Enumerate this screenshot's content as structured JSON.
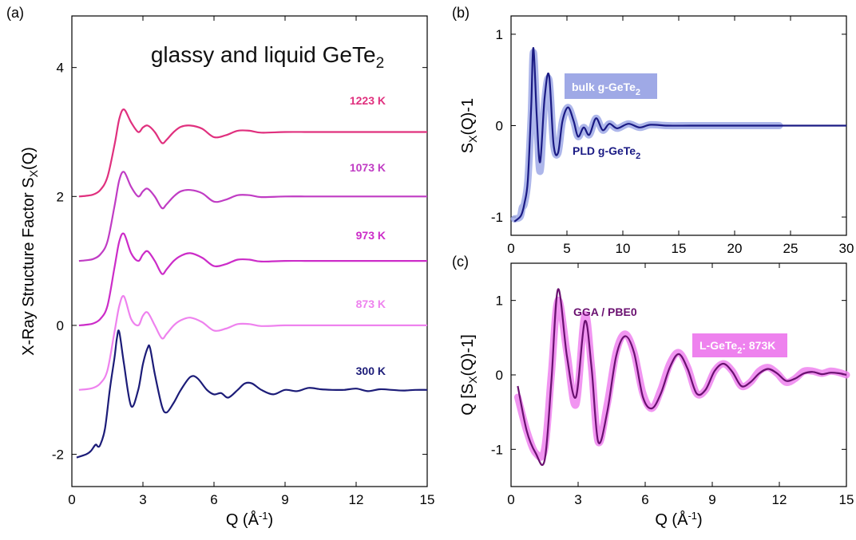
{
  "chart_data": [
    {
      "panel": "(a)",
      "type": "line",
      "title": "glassy and liquid GeTe",
      "title_sub": "2",
      "xlabel": "Q (Å",
      "xlabel_sup": "-1",
      "xlabel_end": ")",
      "ylabel": "X-Ray Structure Factor S",
      "ylabel_sub": "X",
      "ylabel_end": "(Q)",
      "xlim": [
        0,
        15
      ],
      "ylim": [
        -2.5,
        4.8
      ],
      "xticks": [
        "0",
        "3",
        "6",
        "9",
        "12",
        "15"
      ],
      "yticks": [
        "-2",
        "0",
        "2",
        "4"
      ],
      "series": [
        {
          "name": "1223 K",
          "color": "#e0307e",
          "offset": 3,
          "x": [
            0.3,
            0.6,
            0.9,
            1.2,
            1.5,
            1.8,
            2.0,
            2.2,
            2.5,
            2.8,
            3.0,
            3.2,
            3.5,
            3.8,
            4.0,
            4.3,
            4.6,
            5.0,
            5.5,
            6.0,
            6.5,
            7.0,
            7.5,
            8.0,
            9.0,
            10.0,
            11.0,
            12.0,
            13.0,
            14.0,
            15.0
          ],
          "y": [
            -1.0,
            -0.99,
            -0.97,
            -0.9,
            -0.7,
            -0.2,
            0.2,
            0.35,
            0.15,
            0.0,
            0.07,
            0.1,
            0.0,
            -0.17,
            -0.12,
            0.0,
            0.08,
            0.1,
            0.05,
            -0.08,
            -0.05,
            0.02,
            0.02,
            -0.01,
            0.0,
            0.0,
            0.0,
            0.0,
            0.0,
            0.0,
            0.0
          ]
        },
        {
          "name": "1073 K",
          "color": "#c03cc4",
          "offset": 2,
          "x": [
            0.3,
            0.6,
            0.9,
            1.2,
            1.5,
            1.8,
            2.0,
            2.2,
            2.5,
            2.8,
            3.0,
            3.2,
            3.5,
            3.8,
            4.0,
            4.3,
            4.6,
            5.0,
            5.5,
            6.0,
            6.5,
            7.0,
            7.5,
            8.0,
            9.0,
            10.0,
            11.0,
            12.0,
            13.0,
            14.0,
            15.0
          ],
          "y": [
            -1.0,
            -0.99,
            -0.97,
            -0.9,
            -0.7,
            -0.15,
            0.25,
            0.38,
            0.15,
            0.0,
            0.08,
            0.12,
            0.0,
            -0.18,
            -0.12,
            0.0,
            0.08,
            0.1,
            0.05,
            -0.08,
            -0.05,
            0.02,
            0.02,
            -0.01,
            0.0,
            0.0,
            0.0,
            0.0,
            0.0,
            0.0,
            0.0
          ]
        },
        {
          "name": "973 K",
          "color": "#cc2cc8",
          "offset": 1,
          "x": [
            0.3,
            0.6,
            0.9,
            1.2,
            1.5,
            1.8,
            2.0,
            2.2,
            2.5,
            2.8,
            3.0,
            3.2,
            3.5,
            3.8,
            4.0,
            4.3,
            4.6,
            5.0,
            5.5,
            6.0,
            6.5,
            7.0,
            7.5,
            8.0,
            9.0,
            10.0,
            11.0,
            12.0,
            13.0,
            14.0,
            15.0
          ],
          "y": [
            -1.0,
            -0.99,
            -0.97,
            -0.9,
            -0.7,
            -0.1,
            0.3,
            0.42,
            0.12,
            0.0,
            0.1,
            0.15,
            0.0,
            -0.2,
            -0.13,
            0.0,
            0.08,
            0.12,
            0.05,
            -0.08,
            -0.05,
            0.02,
            0.02,
            -0.01,
            0.0,
            0.0,
            0.0,
            0.0,
            0.0,
            0.0,
            0.0
          ]
        },
        {
          "name": "873 K",
          "color": "#ee82ee",
          "offset": 0,
          "x": [
            0.3,
            0.6,
            0.9,
            1.2,
            1.5,
            1.8,
            2.0,
            2.2,
            2.5,
            2.8,
            3.0,
            3.2,
            3.5,
            3.8,
            4.0,
            4.3,
            4.6,
            5.0,
            5.5,
            6.0,
            6.5,
            7.0,
            7.5,
            8.0,
            9.0,
            10.0,
            11.0,
            12.0,
            13.0,
            14.0,
            15.0
          ],
          "y": [
            -1.0,
            -0.99,
            -0.97,
            -0.9,
            -0.7,
            -0.1,
            0.3,
            0.45,
            0.1,
            0.0,
            0.15,
            0.2,
            0.0,
            -0.2,
            -0.13,
            0.0,
            0.08,
            0.12,
            0.05,
            -0.08,
            -0.05,
            0.02,
            0.02,
            -0.01,
            0.0,
            0.0,
            0.0,
            0.0,
            0.0,
            0.0,
            0.0
          ]
        },
        {
          "name": "300 K",
          "color": "#1c1c78",
          "offset": 0,
          "x": [
            0.2,
            0.6,
            0.8,
            1.0,
            1.1,
            1.2,
            1.4,
            1.6,
            1.8,
            1.9,
            2.0,
            2.2,
            2.5,
            2.8,
            3.0,
            3.2,
            3.3,
            3.5,
            3.8,
            4.0,
            4.3,
            4.6,
            5.0,
            5.3,
            5.7,
            6.0,
            6.3,
            6.6,
            7.0,
            7.3,
            7.6,
            8.0,
            8.5,
            9.0,
            9.5,
            10.0,
            10.5,
            11.0,
            11.5,
            12.0,
            12.5,
            13.0,
            13.5,
            14.0,
            14.5,
            15.0
          ],
          "y": [
            -2.05,
            -2.0,
            -1.95,
            -1.85,
            -1.88,
            -1.85,
            -1.6,
            -1.0,
            -0.5,
            -0.2,
            -0.1,
            -0.6,
            -1.25,
            -1.0,
            -0.6,
            -0.35,
            -0.35,
            -0.75,
            -1.25,
            -1.35,
            -1.2,
            -1.0,
            -0.8,
            -0.82,
            -1.0,
            -1.07,
            -1.05,
            -1.12,
            -1.0,
            -0.9,
            -0.9,
            -1.0,
            -1.07,
            -1.0,
            -1.02,
            -0.97,
            -0.99,
            -1.0,
            -1.0,
            -0.98,
            -1.02,
            -0.99,
            -1.0,
            -1.01,
            -1.0,
            -1.0
          ]
        }
      ]
    },
    {
      "panel": "(b)",
      "type": "line",
      "xlabel": "",
      "ylabel": "S",
      "ylabel_sub": "X",
      "ylabel_end": "(Q)-1",
      "xlim": [
        0,
        30
      ],
      "ylim": [
        -1.2,
        1.2
      ],
      "xticks": [
        "0",
        "5",
        "10",
        "15",
        "20",
        "25",
        "30"
      ],
      "yticks": [
        "-1",
        "0",
        "1"
      ],
      "series": [
        {
          "name": "bulk g-GeTe",
          "name_sub": "2",
          "color": "#9fa9e6",
          "style": "band",
          "x": [
            0.3,
            0.8,
            1.0,
            1.2,
            1.5,
            1.8,
            2.0,
            2.3,
            2.6,
            3.0,
            3.4,
            3.8,
            4.2,
            4.6,
            5.1,
            5.6,
            6.0,
            6.5,
            7.0,
            7.6,
            8.2,
            8.8,
            9.5,
            10.5,
            11.5,
            12.5,
            14.0,
            16.0,
            18.0,
            20.0,
            22.0,
            24.0
          ],
          "y": [
            -1.02,
            -1.0,
            -0.9,
            -0.85,
            -0.6,
            0.1,
            0.8,
            0.1,
            -0.5,
            0.25,
            0.5,
            -0.2,
            -0.3,
            0.05,
            0.2,
            0.05,
            -0.12,
            -0.02,
            -0.1,
            0.08,
            -0.05,
            0.02,
            -0.03,
            0.02,
            -0.02,
            0.01,
            0.0,
            0.0,
            0.0,
            0.0,
            0.0,
            0.0
          ]
        },
        {
          "name": "PLD g-GeTe",
          "name_sub": "2",
          "color": "#1a1a84",
          "style": "line",
          "x": [
            0.3,
            0.8,
            1.0,
            1.2,
            1.5,
            1.8,
            2.0,
            2.3,
            2.6,
            3.0,
            3.4,
            3.8,
            4.2,
            4.6,
            5.1,
            5.6,
            6.0,
            6.5,
            7.0,
            7.6,
            8.2,
            8.8,
            9.5,
            10.5,
            11.5,
            12.5,
            14.0,
            16.0,
            18.0,
            20.0,
            22.0,
            24.0,
            26.0,
            28.0,
            30.0
          ],
          "y": [
            -1.05,
            -1.0,
            -0.95,
            -0.85,
            -0.6,
            0.2,
            0.85,
            0.1,
            -0.4,
            0.3,
            0.55,
            -0.2,
            -0.3,
            0.05,
            0.2,
            0.05,
            -0.12,
            -0.02,
            -0.1,
            0.08,
            -0.05,
            0.02,
            -0.03,
            0.02,
            -0.02,
            0.01,
            0.0,
            0.0,
            0.0,
            0.0,
            0.0,
            0.0,
            0.0,
            0.0,
            0.0
          ]
        }
      ]
    },
    {
      "panel": "(c)",
      "type": "line",
      "xlabel": "Q (Å",
      "xlabel_sup": "-1",
      "xlabel_end": ")",
      "ylabel": "Q [S",
      "ylabel_sub": "X",
      "ylabel_end": "(Q)-1]",
      "xlim": [
        0,
        15
      ],
      "ylim": [
        -1.5,
        1.5
      ],
      "xticks": [
        "0",
        "3",
        "6",
        "9",
        "12",
        "15"
      ],
      "yticks": [
        "-1",
        "0",
        "1"
      ],
      "series": [
        {
          "name": "L-GeTe",
          "name_sub": "2",
          "name_end": ": 873K",
          "color": "#ee82ee",
          "style": "band",
          "x": [
            0.3,
            0.7,
            1.1,
            1.5,
            1.8,
            2.1,
            2.5,
            2.9,
            3.3,
            3.6,
            3.9,
            4.3,
            4.7,
            5.1,
            5.5,
            5.9,
            6.3,
            6.7,
            7.1,
            7.5,
            7.9,
            8.3,
            8.7,
            9.1,
            9.5,
            9.9,
            10.3,
            10.7,
            11.1,
            11.5,
            11.9,
            12.3,
            12.7,
            13.1,
            13.5,
            13.9,
            14.3,
            14.7,
            15.0
          ],
          "y": [
            -0.3,
            -0.75,
            -1.05,
            -1.0,
            0.0,
            1.0,
            0.3,
            -0.4,
            0.8,
            0.1,
            -0.9,
            -0.4,
            0.3,
            0.55,
            0.3,
            -0.25,
            -0.45,
            -0.2,
            0.15,
            0.3,
            0.1,
            -0.25,
            -0.2,
            0.05,
            0.15,
            0.05,
            -0.15,
            -0.1,
            0.05,
            0.1,
            0.02,
            -0.1,
            -0.05,
            0.05,
            0.05,
            0.02,
            0.05,
            0.03,
            0.0
          ]
        },
        {
          "name": "GGA / PBE0",
          "color": "#6a1070",
          "style": "line",
          "x": [
            0.3,
            0.7,
            1.1,
            1.5,
            1.8,
            2.1,
            2.5,
            2.9,
            3.3,
            3.6,
            3.9,
            4.3,
            4.7,
            5.1,
            5.5,
            5.9,
            6.3,
            6.7,
            7.1,
            7.5,
            7.9,
            8.3,
            8.7,
            9.1,
            9.5,
            9.9,
            10.3,
            10.7,
            11.1,
            11.5,
            11.9,
            12.3,
            12.7,
            13.1,
            13.5,
            13.9,
            14.3,
            14.7,
            15.0
          ],
          "y": [
            -0.15,
            -0.75,
            -1.05,
            -1.15,
            -0.1,
            1.15,
            0.25,
            -0.3,
            0.72,
            0.1,
            -0.9,
            -0.5,
            0.25,
            0.52,
            0.3,
            -0.3,
            -0.45,
            -0.25,
            0.1,
            0.28,
            0.08,
            -0.25,
            -0.2,
            0.05,
            0.15,
            0.04,
            -0.15,
            -0.1,
            0.02,
            0.08,
            0.02,
            -0.08,
            -0.05,
            0.02,
            0.04,
            0.01,
            0.03,
            0.02,
            0.0
          ]
        }
      ]
    }
  ],
  "labels": {
    "a_panel": "(a)",
    "b_panel": "(b)",
    "c_panel": "(c)"
  }
}
